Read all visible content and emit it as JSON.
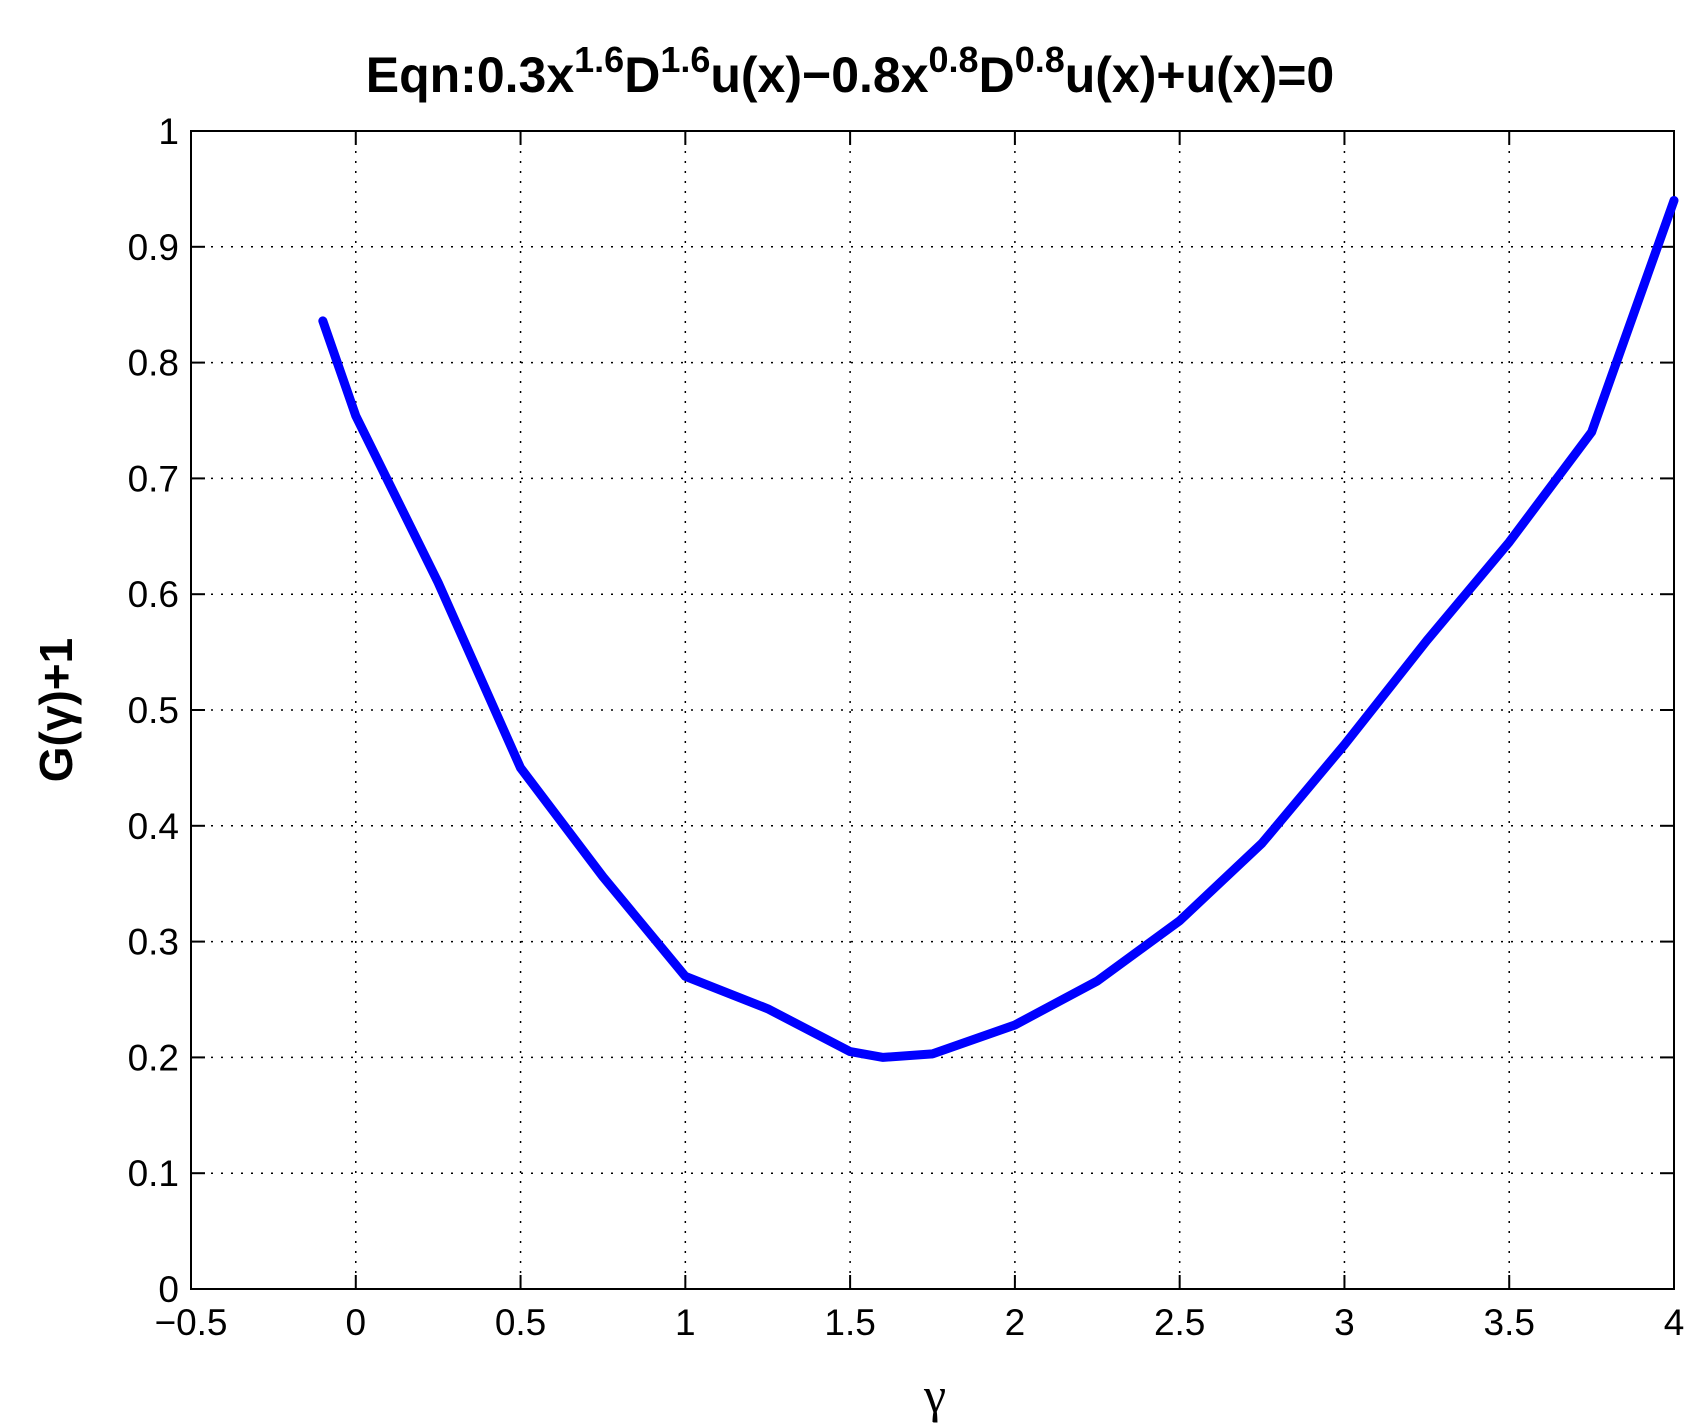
{
  "chart_data": {
    "type": "line",
    "title_parts": [
      "Eqn:0.3x",
      "1.6",
      "D",
      "1.6",
      "u(x)−0.8x",
      "0.8",
      "D",
      "0.8",
      "u(x)+u(x)=0"
    ],
    "x_label": "γ",
    "y_label": "G(γ)+1",
    "x": [
      -0.1,
      0,
      0.25,
      0.5,
      0.75,
      1,
      1.25,
      1.5,
      1.6,
      1.75,
      2,
      2.25,
      2.5,
      2.75,
      3,
      3.25,
      3.5,
      3.75,
      4
    ],
    "series": [
      {
        "color": "#0000ff",
        "values": [
          0.836,
          0.754,
          0.61,
          0.45,
          0.356,
          0.27,
          0.242,
          0.205,
          0.2,
          0.203,
          0.228,
          0.266,
          0.318,
          0.385,
          0.47,
          0.56,
          0.645,
          0.74,
          0.94
        ]
      }
    ],
    "xlim": [
      -0.5,
      4
    ],
    "ylim": [
      0,
      1
    ],
    "xticks": [
      {
        "value": -0.5,
        "label": "−0.5"
      },
      0,
      0.5,
      1,
      1.5,
      2,
      2.5,
      3,
      3.5,
      4
    ],
    "yticks": [
      0,
      0.1,
      0.2,
      0.3,
      0.4,
      0.5,
      0.6,
      0.7,
      0.8,
      0.9,
      1
    ],
    "grid": true
  }
}
